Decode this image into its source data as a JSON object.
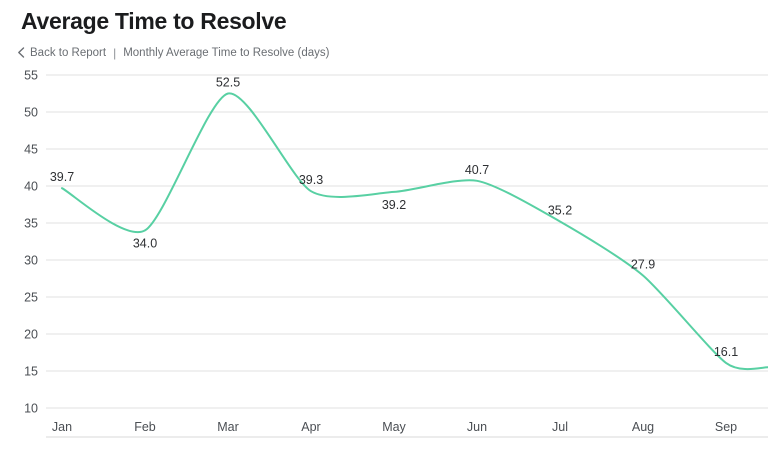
{
  "header": {
    "title": "Average Time to Resolve",
    "back_label": "Back to Report",
    "separator": "|",
    "subtitle": "Monthly Average Time to Resolve (days)"
  },
  "chart_data": {
    "type": "line",
    "title": "Average Time to Resolve",
    "subtitle": "Monthly Average Time to Resolve (days)",
    "categories": [
      "Jan",
      "Feb",
      "Mar",
      "Apr",
      "May",
      "Jun",
      "Jul",
      "Aug",
      "Sep"
    ],
    "values": [
      39.7,
      34.0,
      52.5,
      39.3,
      39.2,
      40.7,
      35.2,
      27.9,
      16.1
    ],
    "value_labels": [
      "39.7",
      "34.0",
      "52.5",
      "39.3",
      "39.2",
      "40.7",
      "35.2",
      "27.9",
      "16.1"
    ],
    "label_placement": [
      "above",
      "below",
      "above",
      "above",
      "below",
      "above",
      "above",
      "above",
      "above"
    ],
    "edge_continuation_value": 15.5,
    "xlabel": "",
    "ylabel": "",
    "ylim": [
      10,
      55
    ],
    "yticks": [
      55,
      50,
      45,
      40,
      35,
      30,
      25,
      20,
      15,
      10
    ],
    "grid": true,
    "legend_position": "none",
    "colors": {
      "line": "#58d0a3",
      "grid": "#e2e2e2",
      "axis_line": "#d8d8d8",
      "axis_labels": "#4b4f54",
      "data_labels": "#2e3033"
    }
  }
}
